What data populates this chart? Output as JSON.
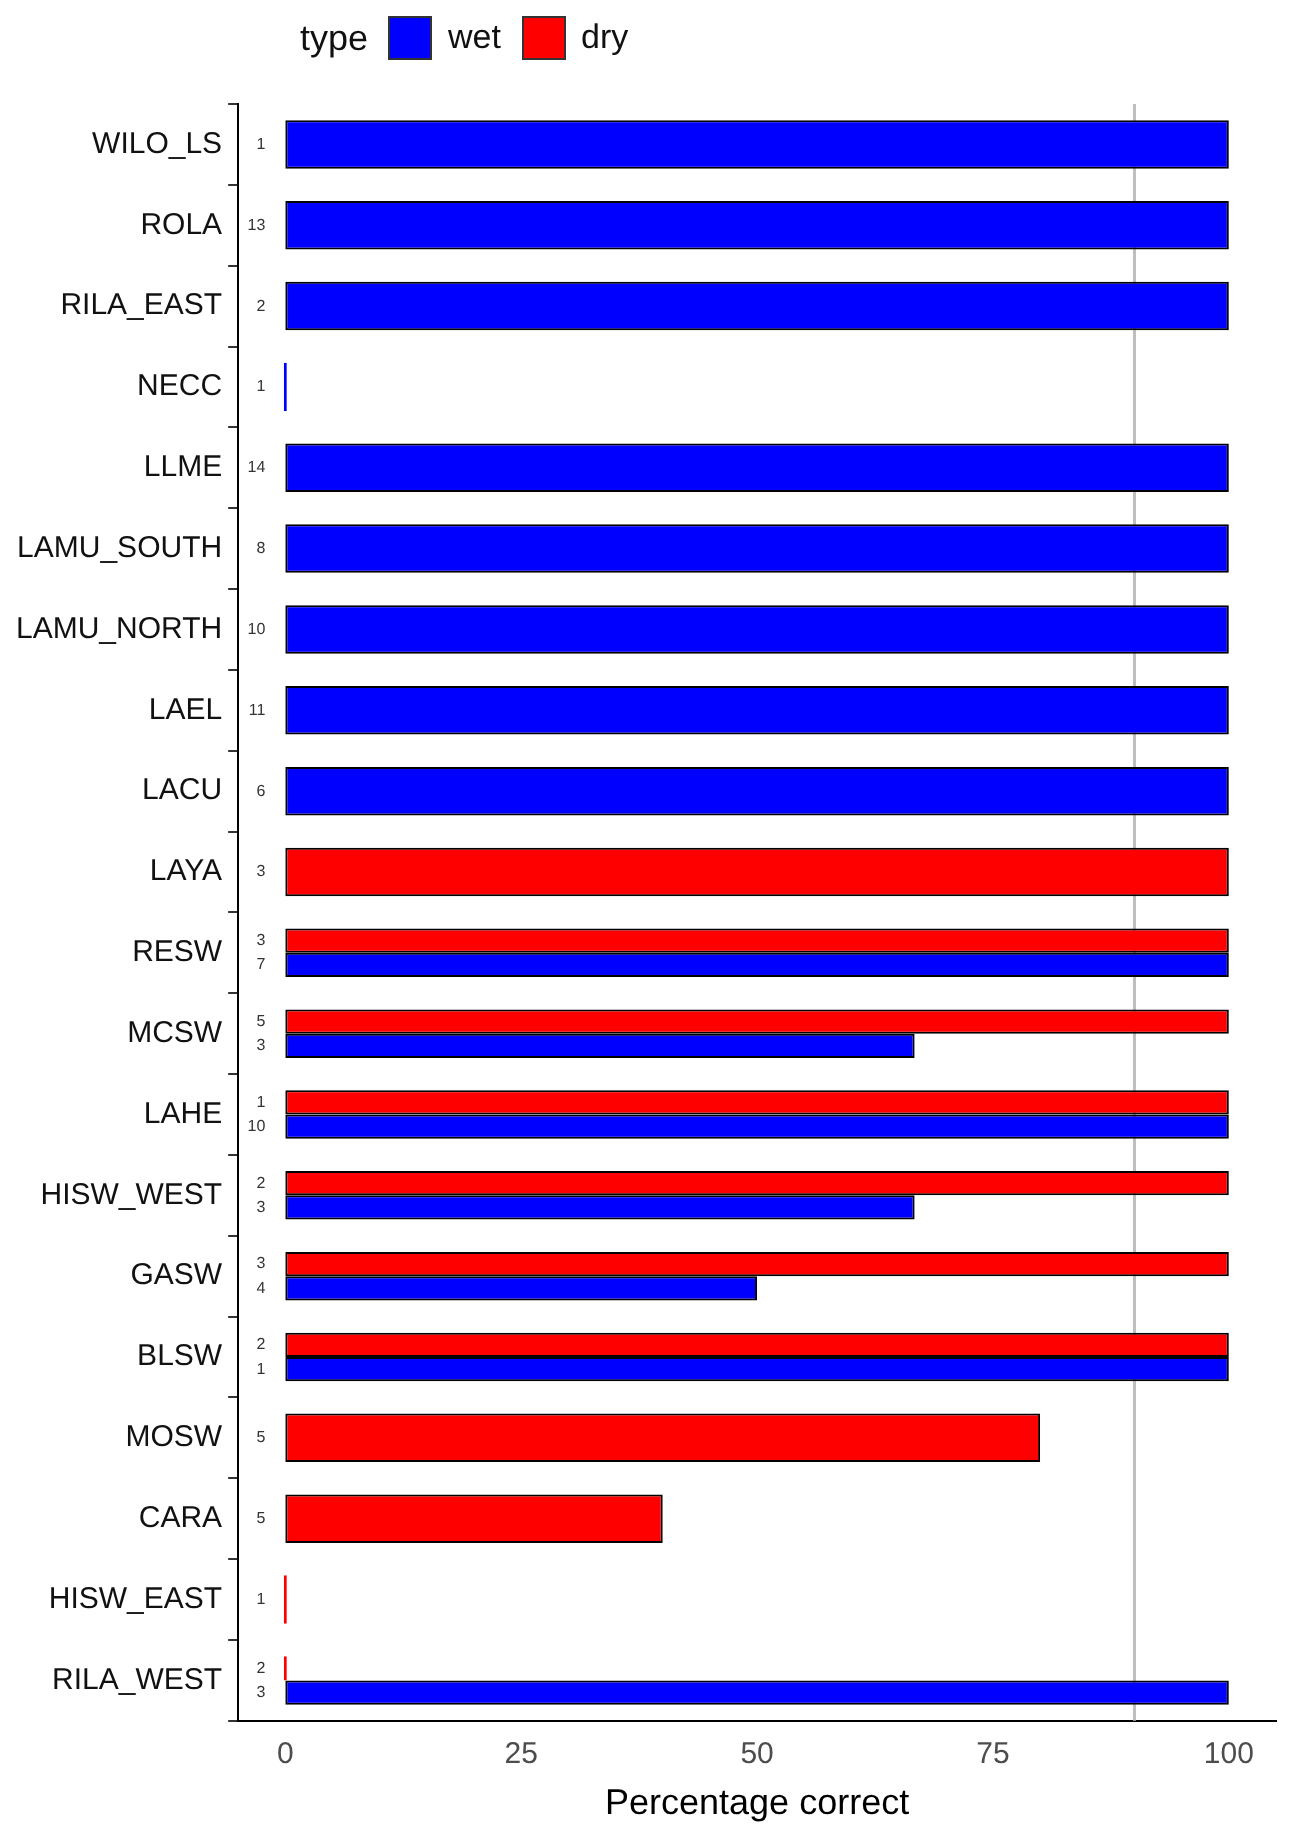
{
  "chart_data": {
    "type": "bar",
    "orientation": "horizontal",
    "xlabel": "Percentage correct",
    "legend_title": "type",
    "legend": "top",
    "grid": false,
    "categories": [
      "WILO_LS",
      "ROLA",
      "RILA_EAST",
      "NECC",
      "LLME",
      "LAMU_SOUTH",
      "LAMU_NORTH",
      "LAEL",
      "LACU",
      "LAYA",
      "RESW",
      "MCSW",
      "LAHE",
      "HISW_WEST",
      "GASW",
      "BLSW",
      "MOSW",
      "CARA",
      "HISW_EAST",
      "RILA_WEST"
    ],
    "series": [
      {
        "name": "wet",
        "color": "#0000ff",
        "values": [
          100,
          100,
          100,
          0,
          100,
          100,
          100,
          100,
          100,
          null,
          100,
          66.7,
          100,
          66.7,
          50,
          100,
          null,
          null,
          null,
          100
        ]
      },
      {
        "name": "dry",
        "color": "#ff0000",
        "values": [
          null,
          null,
          null,
          null,
          null,
          null,
          null,
          null,
          null,
          100,
          100,
          100,
          100,
          100,
          100,
          100,
          80,
          40,
          0,
          0
        ]
      }
    ],
    "annotations": [
      "1",
      "13",
      "2",
      "1",
      "14",
      "8",
      "10",
      "11",
      "6",
      "3",
      "3",
      "7",
      "5",
      "3",
      "1",
      "10",
      "2",
      "3",
      "3",
      "4",
      "2",
      "1",
      "5",
      "5",
      "1",
      "2",
      "3"
    ],
    "xlim": [
      -5,
      105
    ],
    "xticks": [
      0,
      25,
      50,
      75,
      100
    ],
    "ref_lines": [
      {
        "axis": "x",
        "value": 90,
        "color": "#bebebe"
      }
    ]
  }
}
